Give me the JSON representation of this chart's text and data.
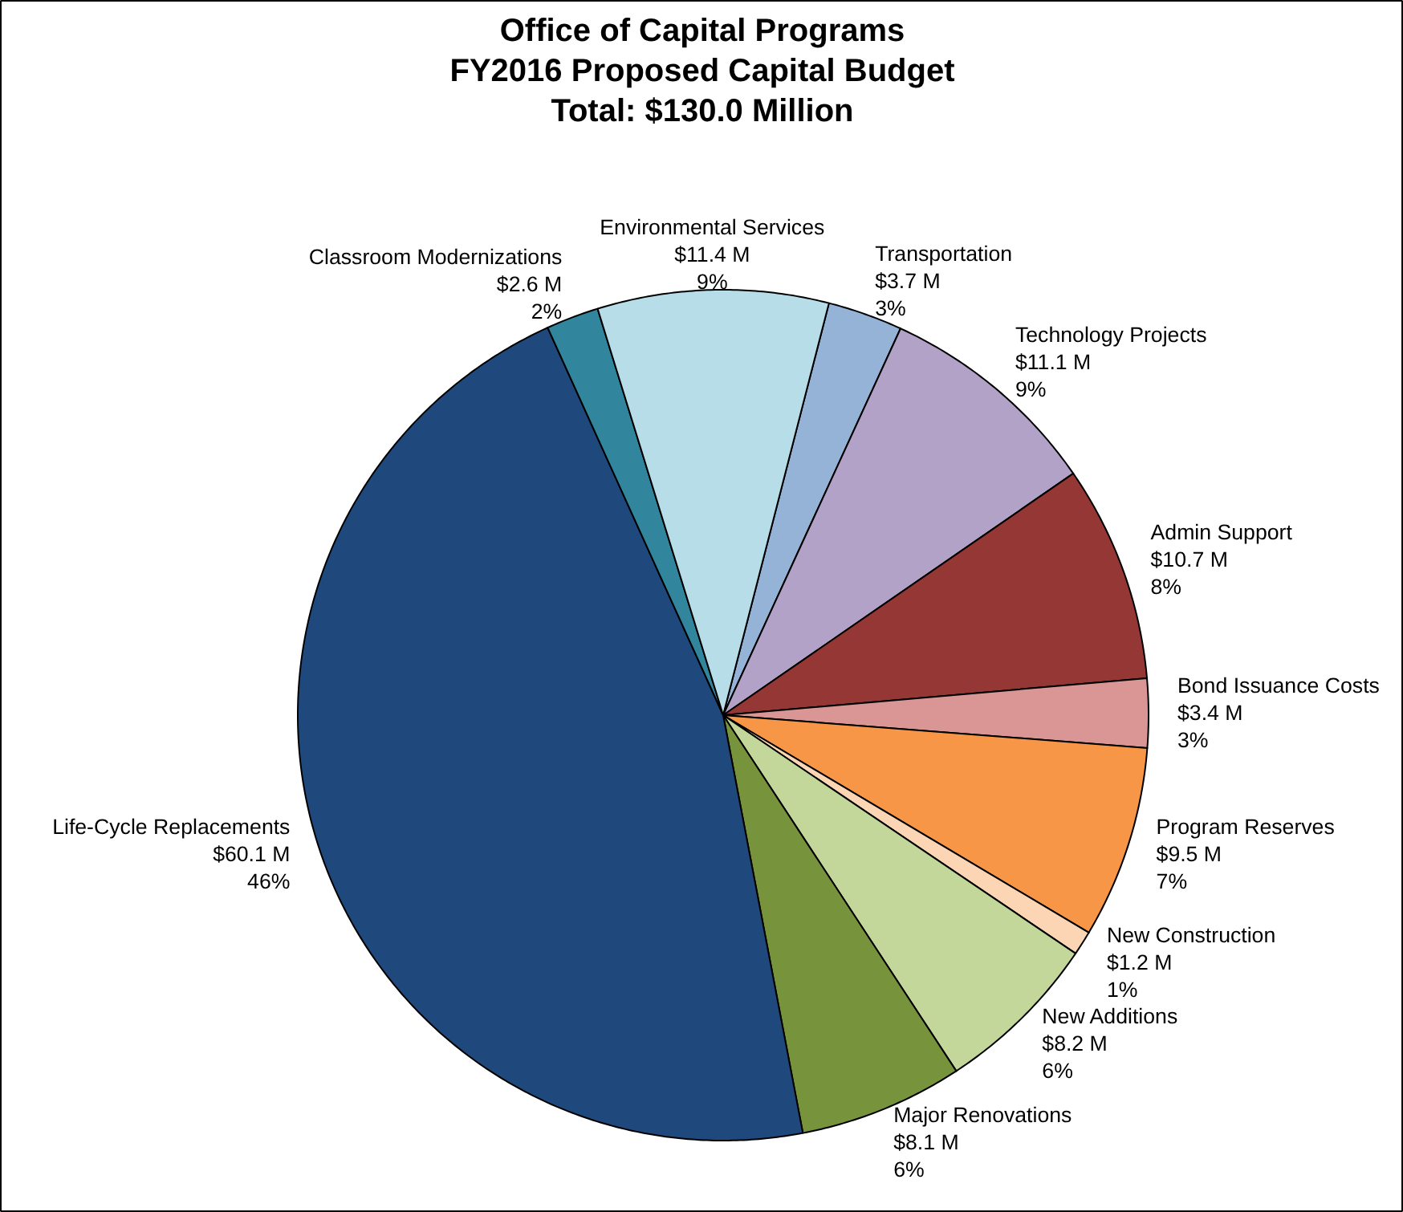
{
  "chart_data": {
    "type": "pie",
    "title": "Office of Capital Programs\nFY2016 Proposed Capital Budget\nTotal: $130.0 Million",
    "categories": [
      "Transportation",
      "Technology Projects",
      "Admin Support",
      "Bond Issuance Costs",
      "Program Reserves",
      "New Construction",
      "New Additions",
      "Major Renovations",
      "Life-Cycle Replacements",
      "Classroom Modernizations",
      "Environmental Services"
    ],
    "values": [
      3.7,
      11.1,
      10.7,
      3.4,
      9.5,
      1.2,
      8.2,
      8.1,
      60.1,
      2.6,
      11.4
    ],
    "value_labels": [
      "$3.7 M\n3%",
      "$11.1 M\n9%",
      "$10.7 M\n8%",
      "$3.4 M\n3%",
      "$9.5 M\n7%",
      "$1.2 M\n1%",
      "$8.2 M\n6%",
      "$8.1 M\n6%",
      "$60.1 M\n46%",
      "$2.6 M\n2%",
      "$11.4 M\n9%"
    ],
    "colors": [
      "#95b3d7",
      "#b3a2c7",
      "#953735",
      "#d99694",
      "#f79646",
      "#fcd5b5",
      "#c4d79b",
      "#77933c",
      "#1f497d",
      "#31859c",
      "#b7dde8"
    ]
  }
}
